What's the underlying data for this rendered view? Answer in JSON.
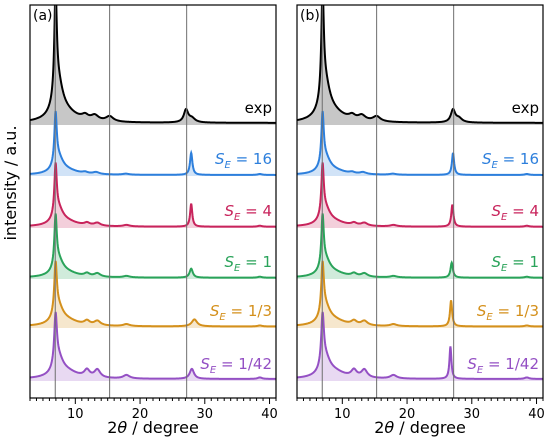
{
  "figure": {
    "ylabel": "intensity / a.u."
  },
  "chart_data": [
    {
      "type": "line",
      "panel_label": "(a)",
      "xlabel": "2θ / degree",
      "xlabel_parts": {
        "num": "2",
        "theta": "θ",
        "rest": " / degree"
      },
      "xlim": [
        3,
        41
      ],
      "xticks": [
        10,
        20,
        30,
        40
      ],
      "vlines": [
        6.9,
        15.3,
        27.2
      ],
      "series": [
        {
          "name": "exp",
          "label_main": "exp",
          "label_sub": "",
          "label_rhs": "",
          "color": "#000000",
          "peaks": [
            [
              6.95,
              1.0,
              0.22
            ],
            [
              7.35,
              0.32,
              0.9
            ],
            [
              8.6,
              0.08,
              2.2
            ],
            [
              11.5,
              0.04,
              0.6
            ],
            [
              13.0,
              0.05,
              0.7
            ],
            [
              15.3,
              0.05,
              0.7
            ],
            [
              27.1,
              0.12,
              0.4
            ],
            [
              28.0,
              0.04,
              0.6
            ]
          ],
          "baseline": 0.02
        },
        {
          "name": "S_E = 16",
          "label_main": "S",
          "label_sub": "E",
          "label_rhs": " = 16",
          "color": "#2d7fdc",
          "peaks": [
            [
              6.95,
              1.0,
              0.22
            ],
            [
              7.4,
              0.3,
              0.9
            ],
            [
              8.8,
              0.07,
              2.0
            ],
            [
              11.5,
              0.03,
              0.5
            ],
            [
              13.2,
              0.04,
              0.6
            ],
            [
              17.8,
              0.02,
              0.6
            ],
            [
              27.9,
              0.44,
              0.22
            ],
            [
              38.5,
              0.02,
              0.4
            ]
          ],
          "baseline": 0.02
        },
        {
          "name": "S_E = 4",
          "label_main": "S",
          "label_sub": "E",
          "label_rhs": " = 4",
          "color": "#c8245c",
          "peaks": [
            [
              6.95,
              1.0,
              0.22
            ],
            [
              7.4,
              0.3,
              0.9
            ],
            [
              8.8,
              0.08,
              2.0
            ],
            [
              11.8,
              0.05,
              0.5
            ],
            [
              13.4,
              0.06,
              0.6
            ],
            [
              17.9,
              0.03,
              0.6
            ],
            [
              27.9,
              0.46,
              0.2
            ],
            [
              38.5,
              0.02,
              0.4
            ]
          ],
          "baseline": 0.025
        },
        {
          "name": "S_E = 1",
          "label_main": "S",
          "label_sub": "E",
          "label_rhs": " = 1",
          "color": "#2aa35a",
          "peaks": [
            [
              6.95,
              1.0,
              0.22
            ],
            [
              7.4,
              0.3,
              0.9
            ],
            [
              8.8,
              0.08,
              2.0
            ],
            [
              11.8,
              0.06,
              0.5
            ],
            [
              13.4,
              0.07,
              0.6
            ],
            [
              17.9,
              0.03,
              0.6
            ],
            [
              27.9,
              0.18,
              0.3
            ],
            [
              38.5,
              0.02,
              0.4
            ]
          ],
          "baseline": 0.025
        },
        {
          "name": "S_E = 1/3",
          "label_main": "S",
          "label_sub": "E",
          "label_rhs": " = 1/3",
          "color": "#d4901c",
          "peaks": [
            [
              6.95,
              1.0,
              0.24
            ],
            [
              7.4,
              0.32,
              0.9
            ],
            [
              8.8,
              0.1,
              2.0
            ],
            [
              11.8,
              0.08,
              0.5
            ],
            [
              13.4,
              0.09,
              0.6
            ],
            [
              17.9,
              0.04,
              0.6
            ],
            [
              28.4,
              0.14,
              0.5
            ],
            [
              38.5,
              0.02,
              0.4
            ]
          ],
          "baseline": 0.03
        },
        {
          "name": "S_E = 1/42",
          "label_main": "S",
          "label_sub": "E",
          "label_rhs": " = 1/42",
          "color": "#9450c4",
          "peaks": [
            [
              6.95,
              1.0,
              0.25
            ],
            [
              7.4,
              0.34,
              0.9
            ],
            [
              8.8,
              0.12,
              2.0
            ],
            [
              11.8,
              0.14,
              0.5
            ],
            [
              13.4,
              0.16,
              0.55
            ],
            [
              17.9,
              0.07,
              0.6
            ],
            [
              28.0,
              0.2,
              0.4
            ],
            [
              38.5,
              0.03,
              0.4
            ]
          ],
          "baseline": 0.04
        }
      ]
    },
    {
      "type": "line",
      "panel_label": "(b)",
      "xlabel": "2θ / degree",
      "xlabel_parts": {
        "num": "2",
        "theta": "θ",
        "rest": " / degree"
      },
      "xlim": [
        3,
        41
      ],
      "xticks": [
        10,
        20,
        30,
        40
      ],
      "vlines": [
        6.9,
        15.3,
        27.2
      ],
      "series": [
        {
          "name": "exp",
          "label_main": "exp",
          "label_sub": "",
          "label_rhs": "",
          "color": "#000000",
          "peaks": [
            [
              6.95,
              1.0,
              0.22
            ],
            [
              7.35,
              0.32,
              0.9
            ],
            [
              8.6,
              0.08,
              2.2
            ],
            [
              11.5,
              0.04,
              0.6
            ],
            [
              13.0,
              0.05,
              0.7
            ],
            [
              15.3,
              0.05,
              0.7
            ],
            [
              27.1,
              0.12,
              0.4
            ],
            [
              28.0,
              0.04,
              0.6
            ]
          ],
          "baseline": 0.02
        },
        {
          "name": "S_E = 16",
          "label_main": "S",
          "label_sub": "E",
          "label_rhs": " = 16",
          "color": "#2d7fdc",
          "peaks": [
            [
              6.95,
              1.0,
              0.22
            ],
            [
              7.4,
              0.3,
              0.9
            ],
            [
              8.8,
              0.07,
              2.0
            ],
            [
              11.5,
              0.03,
              0.5
            ],
            [
              13.2,
              0.04,
              0.6
            ],
            [
              17.8,
              0.02,
              0.6
            ],
            [
              27.1,
              0.44,
              0.2
            ],
            [
              38.5,
              0.02,
              0.4
            ]
          ],
          "baseline": 0.02
        },
        {
          "name": "S_E = 4",
          "label_main": "S",
          "label_sub": "E",
          "label_rhs": " = 4",
          "color": "#c8245c",
          "peaks": [
            [
              6.95,
              1.0,
              0.22
            ],
            [
              7.4,
              0.3,
              0.9
            ],
            [
              8.8,
              0.08,
              2.0
            ],
            [
              11.8,
              0.05,
              0.5
            ],
            [
              13.4,
              0.06,
              0.6
            ],
            [
              17.9,
              0.03,
              0.6
            ],
            [
              27.0,
              0.44,
              0.2
            ],
            [
              38.5,
              0.02,
              0.4
            ]
          ],
          "baseline": 0.025
        },
        {
          "name": "S_E = 1",
          "label_main": "S",
          "label_sub": "E",
          "label_rhs": " = 1",
          "color": "#2aa35a",
          "peaks": [
            [
              6.95,
              1.0,
              0.22
            ],
            [
              7.4,
              0.3,
              0.9
            ],
            [
              8.8,
              0.08,
              2.0
            ],
            [
              11.8,
              0.06,
              0.5
            ],
            [
              13.4,
              0.07,
              0.6
            ],
            [
              17.9,
              0.03,
              0.6
            ],
            [
              26.9,
              0.3,
              0.22
            ],
            [
              38.5,
              0.02,
              0.4
            ]
          ],
          "baseline": 0.025
        },
        {
          "name": "S_E = 1/3",
          "label_main": "S",
          "label_sub": "E",
          "label_rhs": " = 1/3",
          "color": "#d4901c",
          "peaks": [
            [
              6.95,
              1.0,
              0.24
            ],
            [
              7.4,
              0.32,
              0.9
            ],
            [
              8.8,
              0.1,
              2.0
            ],
            [
              11.8,
              0.08,
              0.5
            ],
            [
              13.4,
              0.09,
              0.6
            ],
            [
              17.9,
              0.04,
              0.6
            ],
            [
              26.8,
              0.52,
              0.2
            ],
            [
              38.5,
              0.02,
              0.4
            ]
          ],
          "baseline": 0.03
        },
        {
          "name": "S_E = 1/42",
          "label_main": "S",
          "label_sub": "E",
          "label_rhs": " = 1/42",
          "color": "#9450c4",
          "peaks": [
            [
              6.95,
              1.0,
              0.25
            ],
            [
              7.4,
              0.34,
              0.9
            ],
            [
              8.8,
              0.12,
              2.0
            ],
            [
              11.8,
              0.14,
              0.5
            ],
            [
              13.4,
              0.16,
              0.55
            ],
            [
              17.9,
              0.07,
              0.6
            ],
            [
              26.7,
              0.65,
              0.18
            ],
            [
              38.5,
              0.03,
              0.4
            ]
          ],
          "baseline": 0.04
        }
      ]
    }
  ]
}
